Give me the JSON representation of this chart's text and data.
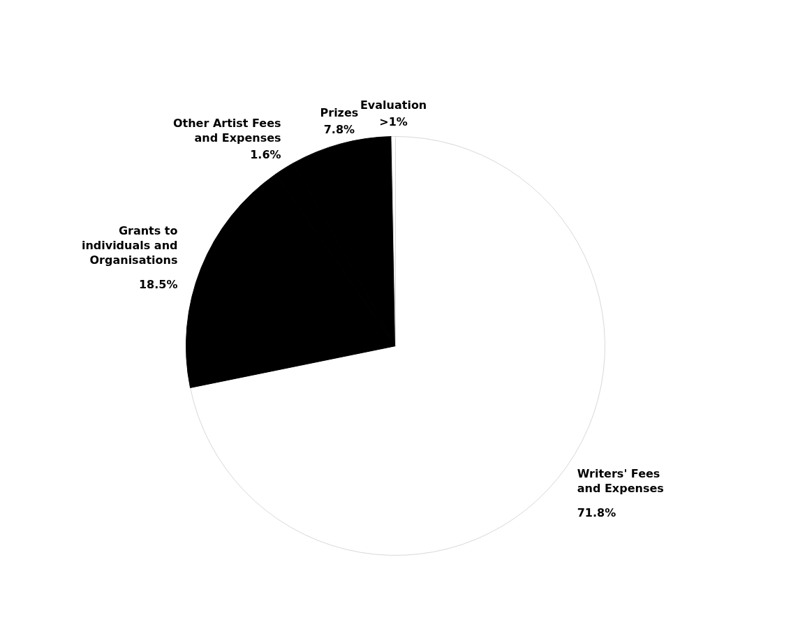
{
  "chart_data": {
    "type": "pie",
    "categories": [
      "Writers' Fees and Expenses",
      "Grants to individuals and Organisations",
      "Other Artist Fees and Expenses",
      "Prizes",
      "Evaluation"
    ],
    "values": [
      71.8,
      18.5,
      1.6,
      7.8,
      0.3
    ],
    "colors": [
      "#ffffff",
      "#000000",
      "#000000",
      "#000000",
      "#ffffff"
    ],
    "value_labels": [
      "71.8%",
      "18.5%",
      "1.6%",
      "7.8%",
      ">1%"
    ]
  }
}
